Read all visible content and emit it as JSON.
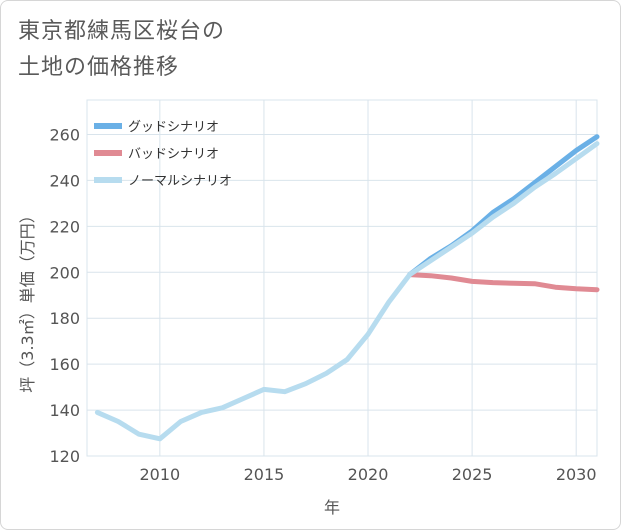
{
  "title_line1": "東京都練馬区桜台の",
  "title_line2": "土地の価格推移",
  "chart_data": {
    "type": "line",
    "xlabel": "年",
    "ylabel": "坪（3.3㎡）単価（万円）",
    "xlim": [
      2006.5,
      2031
    ],
    "ylim": [
      120,
      275
    ],
    "xticks": [
      2010,
      2015,
      2020,
      2025,
      2030
    ],
    "yticks": [
      120,
      140,
      160,
      180,
      200,
      220,
      240,
      260
    ],
    "legend_position": "top-left",
    "series": [
      {
        "name": "グッドシナリオ",
        "color": "#6ab0e6",
        "x": [
          2022,
          2023,
          2024,
          2025,
          2026,
          2027,
          2028,
          2029,
          2030,
          2031
        ],
        "y": [
          199,
          206,
          211.5,
          218,
          226,
          232,
          239,
          246,
          253,
          259
        ]
      },
      {
        "name": "バッドシナリオ",
        "color": "#e08a93",
        "x": [
          2022,
          2023,
          2024,
          2025,
          2026,
          2027,
          2028,
          2029,
          2030,
          2031
        ],
        "y": [
          199,
          198.5,
          197.5,
          196,
          195.5,
          195.2,
          195,
          193.5,
          192.8,
          192.4
        ]
      },
      {
        "name": "ノーマルシナリオ",
        "color": "#b7dcef",
        "x": [
          2007,
          2008,
          2009,
          2010,
          2011,
          2012,
          2013,
          2014,
          2015,
          2016,
          2017,
          2018,
          2019,
          2020,
          2021,
          2022,
          2023,
          2024,
          2025,
          2026,
          2027,
          2028,
          2029,
          2030,
          2031
        ],
        "y": [
          139,
          135,
          129.5,
          127.5,
          135,
          139,
          141,
          145,
          149,
          148,
          151.5,
          156,
          162,
          173,
          187,
          199,
          205,
          211,
          217,
          224,
          230,
          237,
          243,
          249.5,
          256
        ]
      }
    ]
  }
}
